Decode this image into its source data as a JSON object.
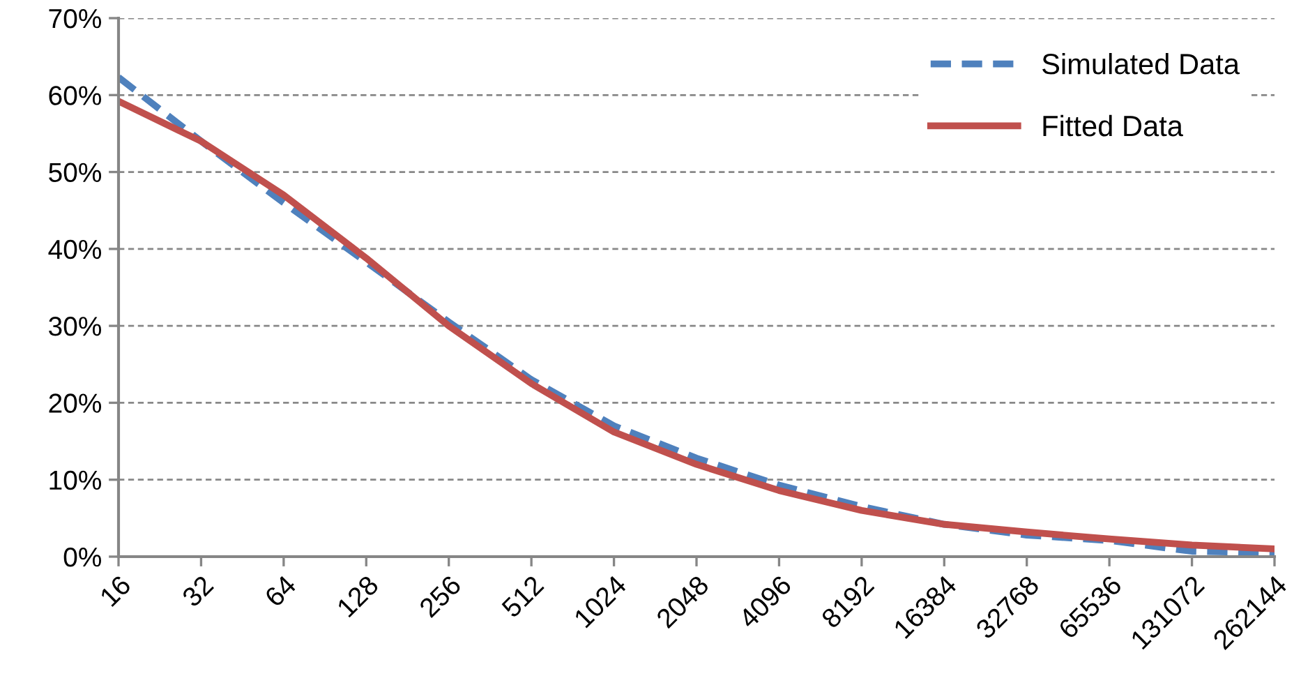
{
  "chart_data": {
    "type": "line",
    "categories": [
      "16",
      "32",
      "64",
      "128",
      "256",
      "512",
      "1024",
      "2048",
      "4096",
      "8192",
      "16384",
      "32768",
      "65536",
      "131072",
      "262144"
    ],
    "series": [
      {
        "name": "Simulated Data",
        "color": "#4f81bd",
        "line_style": "dashed",
        "values": [
          62.3,
          54,
          46,
          38.3,
          30.5,
          23,
          17,
          12.8,
          9.3,
          6.5,
          4.2,
          2.8,
          2.1,
          0.7,
          0.5
        ]
      },
      {
        "name": "Fitted Data",
        "color": "#c0504d",
        "line_style": "solid",
        "values": [
          59.2,
          54,
          47,
          38.8,
          30,
          22.5,
          16.2,
          12,
          8.6,
          6,
          4.2,
          3.2,
          2.3,
          1.5,
          1.0
        ]
      }
    ],
    "ylim": [
      0,
      70
    ],
    "yticks": [
      {
        "value": 0,
        "label": "0%"
      },
      {
        "value": 10,
        "label": "10%"
      },
      {
        "value": 20,
        "label": "20%"
      },
      {
        "value": 30,
        "label": "30%"
      },
      {
        "value": 40,
        "label": "40%"
      },
      {
        "value": 50,
        "label": "50%"
      },
      {
        "value": 60,
        "label": "60%"
      },
      {
        "value": 70,
        "label": "70%"
      }
    ],
    "grid": "y",
    "legend": "top right",
    "marker": "none"
  }
}
